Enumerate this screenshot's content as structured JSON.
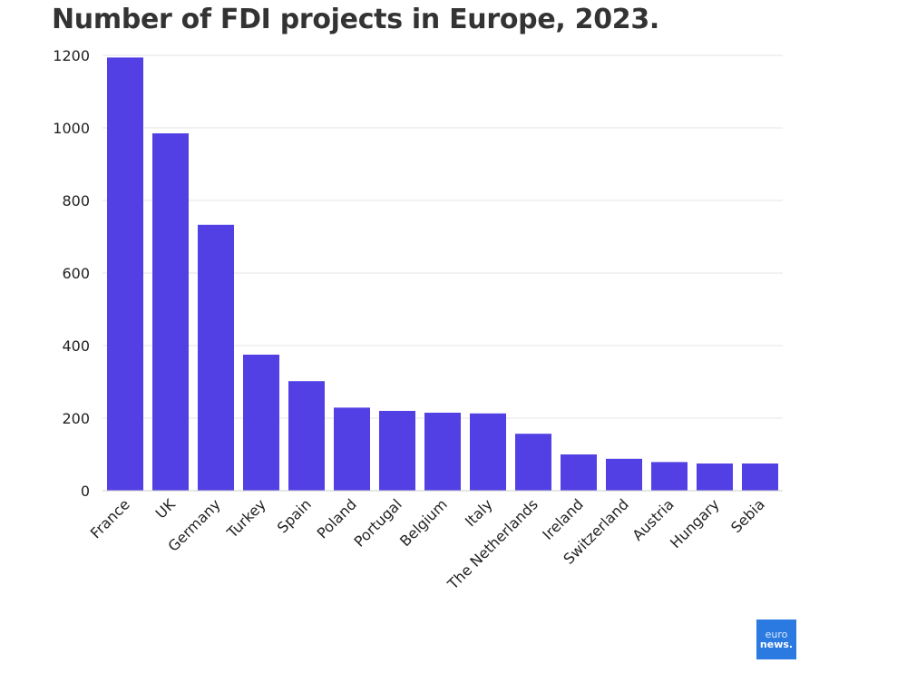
{
  "chart_data": {
    "type": "bar",
    "title": "Number of FDI projects in Europe, 2023.",
    "xlabel": "",
    "ylabel": "",
    "categories": [
      "France",
      "UK",
      "Germany",
      "Turkey",
      "Spain",
      "Poland",
      "Portugal",
      "Belgium",
      "Italy",
      "The Netherlands",
      "Ireland",
      "Switzerland",
      "Austria",
      "Hungary",
      "Sebia"
    ],
    "values": [
      1194,
      985,
      733,
      375,
      302,
      229,
      220,
      215,
      213,
      157,
      100,
      88,
      79,
      75,
      75
    ],
    "ylim": [
      0,
      1200
    ],
    "yticks": [
      0,
      200,
      400,
      600,
      800,
      1000,
      1200
    ],
    "grid": true,
    "bar_color": "#5340e5"
  },
  "logo": {
    "line1": "euro",
    "line2": "news."
  }
}
